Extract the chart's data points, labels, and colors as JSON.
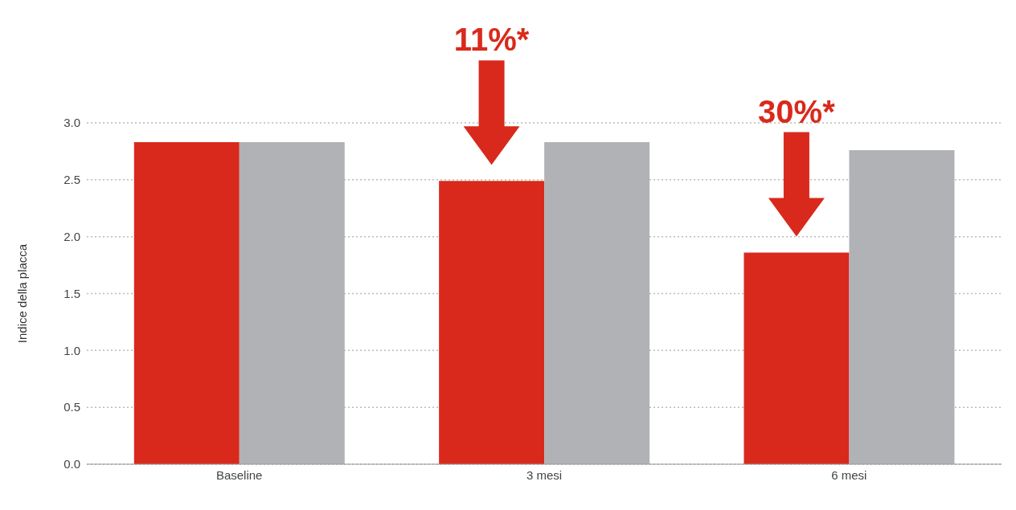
{
  "chart_data": {
    "type": "bar",
    "ylabel": "Indice della placca",
    "categories": [
      "Baseline",
      "3 mesi",
      "6 mesi"
    ],
    "series": [
      {
        "color": "#d9291c",
        "values": [
          2.83,
          2.49,
          1.86
        ]
      },
      {
        "color": "#b1b2b5",
        "values": [
          2.83,
          2.83,
          2.76
        ]
      }
    ],
    "ylim": [
      0,
      3
    ],
    "yticks": [
      {
        "value": 0,
        "label": "0.0"
      },
      {
        "value": 0.5,
        "label": "0.5"
      },
      {
        "value": 1,
        "label": "1.0"
      },
      {
        "value": 1.5,
        "label": "1.5"
      },
      {
        "value": 2,
        "label": "2.0"
      },
      {
        "value": 2.5,
        "label": "2.5"
      },
      {
        "value": 3,
        "label": "3.0"
      }
    ],
    "grid": "y",
    "legend": false,
    "annotations": [
      "11%*",
      "30%*"
    ]
  }
}
